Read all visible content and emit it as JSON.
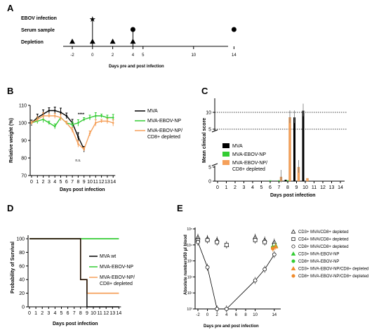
{
  "colors": {
    "mva": "#000000",
    "np": "#33cc33",
    "cd8": "#f5a05a",
    "cd8_dark": "#f08a2a"
  },
  "panel_a": {
    "label": "A",
    "rows": [
      "EBOV infection",
      "Serum sample",
      "Depletion"
    ],
    "ticks": [
      "-2",
      "0",
      "2",
      "4",
      "5",
      "10",
      "14"
    ],
    "xlabel": "Days pre and post infection",
    "infection_days": [
      0
    ],
    "serum_days": [
      4,
      14
    ],
    "depletion_days": [
      -2,
      0,
      2,
      4
    ]
  },
  "panel_b": {
    "label": "B",
    "chart_data": {
      "type": "line",
      "ylabel": "Relative weight (%)",
      "xlabel": "Days post infection",
      "ylim": [
        70,
        110
      ],
      "yticks": [
        "70",
        "80",
        "90",
        "100",
        "110"
      ],
      "x": [
        0,
        1,
        2,
        3,
        4,
        5,
        6,
        7,
        8,
        9,
        10,
        11,
        12,
        13,
        14
      ],
      "xticks": [
        "0",
        "1",
        "2",
        "3",
        "4",
        "5",
        "6",
        "7",
        "8",
        "9",
        "10",
        "11",
        "12",
        "13",
        "14"
      ],
      "series": [
        {
          "name": "MVA",
          "color": "#000000",
          "x": [
            0,
            1,
            2,
            3,
            4,
            5,
            6,
            7,
            8,
            9
          ],
          "values": [
            100,
            103,
            105,
            107,
            107,
            106,
            104,
            100,
            92,
            85
          ]
        },
        {
          "name": "MVA-EBOV-NP",
          "color": "#33cc33",
          "x": [
            0,
            1,
            2,
            3,
            4,
            5,
            6,
            7,
            8,
            9,
            10,
            11,
            12,
            13,
            14
          ],
          "values": [
            100,
            101,
            102,
            100,
            98,
            103,
            100,
            99,
            100,
            102,
            103,
            104,
            104,
            103,
            103
          ]
        },
        {
          "name": "MVA-EBOV-NP/ CD8+ depleted",
          "color": "#f5a05a",
          "x": [
            0,
            1,
            2,
            3,
            4,
            5,
            6,
            7,
            8,
            9,
            10,
            11,
            12,
            13,
            14
          ],
          "values": [
            100,
            102,
            104,
            104,
            104,
            103,
            100,
            96,
            88,
            85,
            94,
            100,
            101,
            101,
            100
          ]
        }
      ],
      "annotations": [
        "****",
        "n.s."
      ]
    }
  },
  "panel_c": {
    "label": "C",
    "chart_data": {
      "type": "bar",
      "ylabel": "Mean clinical score",
      "xlabel": "Days post infection",
      "yticks_low": [
        "0",
        "5"
      ],
      "yticks_high": [
        "5",
        "10"
      ],
      "categories": [
        "0",
        "1",
        "2",
        "3",
        "4",
        "5",
        "6",
        "7",
        "8",
        "9",
        "10",
        "11",
        "12",
        "13",
        "14"
      ],
      "series": [
        {
          "name": "MVA",
          "color": "#000000",
          "values": [
            0,
            0,
            0,
            0,
            0,
            0,
            0,
            0,
            0.5,
            8.5,
            10.5,
            0,
            0,
            0,
            0
          ]
        },
        {
          "name": "MVA-EBOV-NP",
          "color": "#33cc33",
          "values": [
            0,
            0,
            0,
            0,
            0,
            0,
            0.3,
            0.3,
            0.3,
            0,
            0,
            0,
            0,
            0,
            0
          ]
        },
        {
          "name": "MVA-EBOV-NP/ CD8+ depleted",
          "color": "#f5a05a",
          "values": [
            0,
            0,
            0,
            0,
            0,
            0,
            0,
            1.5,
            8.5,
            5,
            1,
            0,
            0,
            0,
            0
          ]
        }
      ]
    }
  },
  "panel_d": {
    "label": "D",
    "chart_data": {
      "type": "line",
      "ylabel": "Probability of Survival",
      "xlabel": "Days post infection",
      "ylim": [
        0,
        100
      ],
      "yticks": [
        "0",
        "20",
        "40",
        "60",
        "80",
        "100"
      ],
      "xticks": [
        "0",
        "1",
        "2",
        "3",
        "4",
        "5",
        "6",
        "7",
        "8",
        "9",
        "10",
        "11",
        "12",
        "13",
        "14"
      ],
      "series": [
        {
          "name": "MVA wt",
          "color": "#000000",
          "x": [
            0,
            8,
            8,
            9,
            9,
            14
          ],
          "values": [
            100,
            100,
            40,
            40,
            0,
            0
          ]
        },
        {
          "name": "MVA-EBOV-NP",
          "color": "#33cc33",
          "x": [
            0,
            14
          ],
          "values": [
            100,
            100
          ]
        },
        {
          "name": "MVA-EBOV-NP/ CD8+ depleted",
          "color": "#f5a05a",
          "x": [
            0,
            8,
            8,
            9,
            9,
            14
          ],
          "values": [
            100,
            100,
            40,
            40,
            20,
            20
          ]
        }
      ]
    }
  },
  "panel_e": {
    "label": "E",
    "chart_data": {
      "type": "scatter",
      "ylabel": "Absolute numbers/50 µl blood",
      "xlabel": "Days pre and post infection",
      "log_y": true,
      "yticks": [
        "10⁰",
        "10¹",
        "10²",
        "10³",
        "10⁴",
        "10⁵"
      ],
      "xticks": [
        "-2",
        "0",
        "2",
        "4",
        "6",
        "8",
        "10",
        "14"
      ],
      "series": [
        {
          "name": "CD3+ MVA/CD8+ depleted",
          "marker": "open-triangle",
          "x": [
            -2,
            0,
            2,
            4,
            10,
            12,
            14
          ],
          "values": [
            30000,
            25000,
            20000,
            10000,
            30000,
            20000,
            15000
          ]
        },
        {
          "name": "CD4+ MVA/CD8+ depleted",
          "marker": "open-square",
          "x": [
            -2,
            0,
            2,
            4,
            10,
            12,
            14
          ],
          "values": [
            20000,
            20000,
            15000,
            10000,
            20000,
            15000,
            10000
          ]
        },
        {
          "name": "CD8+ MVA/CD8+ depleted",
          "marker": "open-circle",
          "x": [
            -2,
            0,
            2,
            4,
            10,
            12,
            14
          ],
          "values": [
            15000,
            400,
            1,
            1,
            60,
            300,
            2500
          ]
        },
        {
          "name": "CD3+ MVA-EBOV-NP",
          "marker": "triangle",
          "color": "#33cc33",
          "x": [
            14
          ],
          "values": [
            9000
          ]
        },
        {
          "name": "CD8+ MVA-EBOV-NP",
          "marker": "circle",
          "color": "#33cc33",
          "x": [
            14
          ],
          "values": [
            7000
          ]
        },
        {
          "name": "CD3+ MVA-EBOV-NP/CD8+ depleted",
          "marker": "triangle",
          "color": "#f08a2a",
          "x": [
            14
          ],
          "values": [
            8000
          ]
        },
        {
          "name": "CD8+ MVA-EBOV-NP/CD8+ depleted",
          "marker": "circle",
          "color": "#f08a2a",
          "x": [
            14
          ],
          "values": [
            6000
          ]
        }
      ]
    }
  }
}
